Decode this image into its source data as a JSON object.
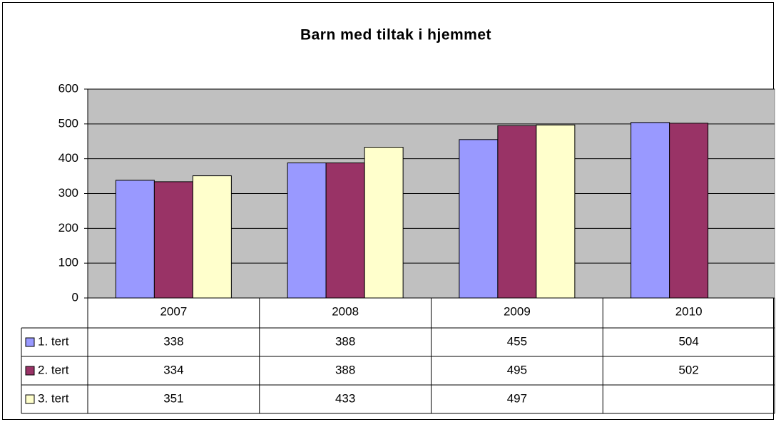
{
  "chart_data": {
    "type": "bar",
    "title": "Barn med tiltak i hjemmet",
    "categories": [
      "2007",
      "2008",
      "2009",
      "2010"
    ],
    "series": [
      {
        "name": "1. tert",
        "color": "#9999ff",
        "values": [
          338,
          388,
          455,
          504
        ]
      },
      {
        "name": "2. tert",
        "color": "#993366",
        "values": [
          334,
          388,
          495,
          502
        ]
      },
      {
        "name": "3. tert",
        "color": "#ffffcc",
        "values": [
          351,
          433,
          497,
          null
        ]
      }
    ],
    "ylim": [
      0,
      600
    ],
    "yticks": [
      0,
      100,
      200,
      300,
      400,
      500,
      600
    ],
    "grid": true,
    "plot_background": "#c0c0c0"
  }
}
